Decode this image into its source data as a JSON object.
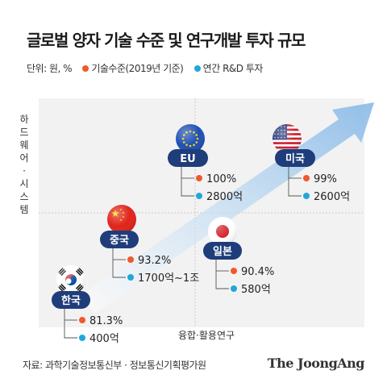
{
  "title": "글로벌 양자 기술 수준 및 연구개발 투자 규모",
  "unit_label": "단위: 원, %",
  "legend": [
    {
      "label": "기술수준(2019년 기준)",
      "color": "#ee5a2c"
    },
    {
      "label": "연간 R&D 투자",
      "color": "#22a7d9"
    }
  ],
  "source": "자료: 과학기술정보통신부 · 정보통신기획평가원",
  "brand": "The JoongAng",
  "colors": {
    "tag": "#1f3d7a",
    "accent_dot": "#ee5a2c",
    "invest_dot": "#22a7d9",
    "arrow": "#7fb5e6"
  },
  "chart_data": {
    "type": "scatter",
    "xlabel": "융합·활용연구",
    "ylabel": "하드웨어·시스템",
    "series": [
      {
        "name": "기술수준(2019년 기준)",
        "unit": "%",
        "values": [
          "100%",
          "99%",
          "93.2%",
          "90.4%",
          "81.3%"
        ]
      },
      {
        "name": "연간 R&D 투자",
        "unit": "원",
        "values": [
          "2800억",
          "2600억",
          "1700억~1조",
          "580억",
          "400억"
        ]
      }
    ],
    "points": [
      {
        "country": "EU",
        "flag": "eu-flag-icon",
        "tech_level": "100%",
        "rd_investment": "2800억"
      },
      {
        "country": "미국",
        "flag": "us-flag-icon",
        "tech_level": "99%",
        "rd_investment": "2600억"
      },
      {
        "country": "중국",
        "flag": "china-flag-icon",
        "tech_level": "93.2%",
        "rd_investment": "1700억~1조"
      },
      {
        "country": "일본",
        "flag": "japan-flag-icon",
        "tech_level": "90.4%",
        "rd_investment": "580억"
      },
      {
        "country": "한국",
        "flag": "korea-flag-icon",
        "tech_level": "81.3%",
        "rd_investment": "400억"
      }
    ]
  }
}
